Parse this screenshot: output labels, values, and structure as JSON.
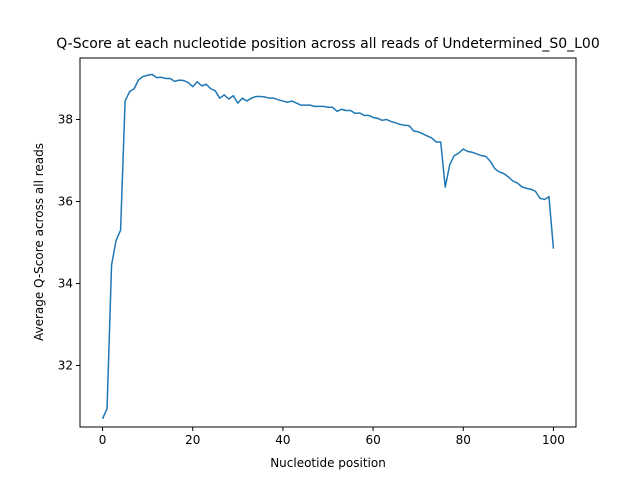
{
  "chart_data": {
    "type": "line",
    "title": "Q-Score at each nucleotide position across all reads of Undetermined_S0_L00",
    "xlabel": "Nucleotide position",
    "ylabel": "Average Q-Score across all reads",
    "xlim": [
      -5,
      105
    ],
    "ylim": [
      30.5,
      39.5
    ],
    "xticks": [
      0,
      20,
      40,
      60,
      80,
      100
    ],
    "yticks": [
      32,
      34,
      36,
      38
    ],
    "grid": false,
    "series": [
      {
        "color": "#1f77b4",
        "x": [
          0,
          1,
          2,
          3,
          4,
          5,
          6,
          7,
          8,
          9,
          10,
          11,
          12,
          13,
          14,
          15,
          16,
          17,
          18,
          19,
          20,
          21,
          22,
          23,
          24,
          25,
          26,
          27,
          28,
          29,
          30,
          31,
          32,
          33,
          34,
          35,
          36,
          37,
          38,
          39,
          40,
          41,
          42,
          43,
          44,
          45,
          46,
          47,
          48,
          49,
          50,
          51,
          52,
          53,
          54,
          55,
          56,
          57,
          58,
          59,
          60,
          61,
          62,
          63,
          64,
          65,
          66,
          67,
          68,
          69,
          70,
          71,
          72,
          73,
          74,
          75,
          76,
          77,
          78,
          79,
          80,
          81,
          82,
          83,
          84,
          85,
          86,
          87,
          88,
          89,
          90,
          91,
          92,
          93,
          94,
          95,
          96,
          97,
          98,
          99,
          100
        ],
        "values": [
          30.7,
          30.95,
          34.45,
          35.05,
          35.3,
          38.45,
          38.68,
          38.75,
          38.97,
          39.05,
          39.08,
          39.1,
          39.02,
          39.03,
          39.0,
          39.0,
          38.93,
          38.96,
          38.95,
          38.9,
          38.8,
          38.92,
          38.82,
          38.86,
          38.75,
          38.7,
          38.52,
          38.6,
          38.5,
          38.58,
          38.4,
          38.52,
          38.45,
          38.52,
          38.56,
          38.56,
          38.55,
          38.52,
          38.52,
          38.48,
          38.45,
          38.42,
          38.45,
          38.4,
          38.35,
          38.35,
          38.35,
          38.32,
          38.32,
          38.32,
          38.3,
          38.3,
          38.2,
          38.25,
          38.22,
          38.22,
          38.15,
          38.16,
          38.1,
          38.1,
          38.05,
          38.03,
          37.98,
          38.0,
          37.95,
          37.92,
          37.88,
          37.86,
          37.85,
          37.72,
          37.7,
          37.65,
          37.6,
          37.55,
          37.45,
          37.45,
          36.35,
          36.9,
          37.12,
          37.18,
          37.28,
          37.22,
          37.2,
          37.16,
          37.12,
          37.1,
          36.98,
          36.8,
          36.72,
          36.68,
          36.6,
          36.5,
          36.45,
          36.36,
          36.32,
          36.3,
          36.25,
          36.08,
          36.05,
          36.12,
          34.85
        ]
      }
    ]
  }
}
